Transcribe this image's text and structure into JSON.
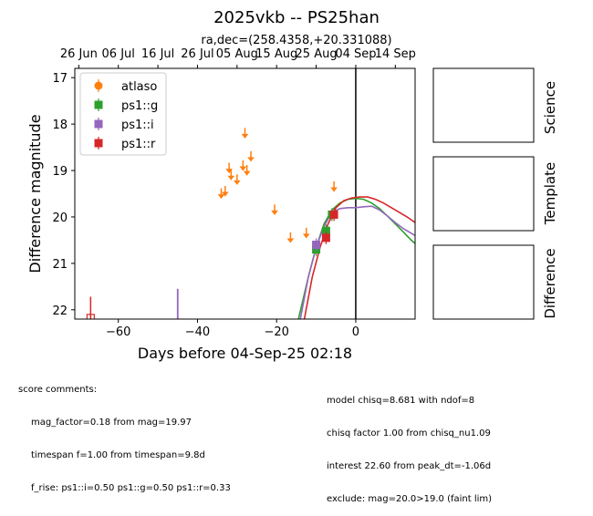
{
  "chart_data": {
    "type": "scatter",
    "title": "2025vkb -- PS25han",
    "subtitle": "ra,dec=(258.4358,+20.331088)",
    "xlabel": "Days before 04-Sep-25 02:18",
    "ylabel": "Difference magnitude",
    "xlim": [
      -71,
      15
    ],
    "ylim": [
      22.2,
      16.8
    ],
    "y_inverted": true,
    "x_ticks": [
      -60,
      -40,
      -20,
      0
    ],
    "y_ticks": [
      17,
      18,
      19,
      20,
      21,
      22
    ],
    "top_axis_ticks": [
      {
        "x": -70,
        "label": "26 Jun"
      },
      {
        "x": -60,
        "label": "06 Jul"
      },
      {
        "x": -50,
        "label": "16 Jul"
      },
      {
        "x": -40,
        "label": "26 Jul"
      },
      {
        "x": -30,
        "label": "05 Aug"
      },
      {
        "x": -20,
        "label": "15 Aug"
      },
      {
        "x": -10,
        "label": "25 Aug"
      },
      {
        "x": 0,
        "label": "04 Sep"
      },
      {
        "x": 10,
        "label": "14 Sep"
      }
    ],
    "vertical_line_x": 0,
    "legend_position": "upper-left",
    "series": [
      {
        "name": "atlaso",
        "color": "#ff7f0e",
        "marker": "circle",
        "kind": "upper_limit",
        "points": [
          [
            -34,
            19.5
          ],
          [
            -33,
            19.45
          ],
          [
            -32,
            18.95
          ],
          [
            -31.5,
            19.1
          ],
          [
            -30,
            19.2
          ],
          [
            -28.5,
            18.9
          ],
          [
            -28,
            18.2
          ],
          [
            -27.5,
            19.0
          ],
          [
            -26.5,
            18.7
          ],
          [
            -20.5,
            19.85
          ],
          [
            -16.5,
            20.45
          ],
          [
            -12.5,
            20.35
          ],
          [
            -5.5,
            19.35
          ]
        ]
      },
      {
        "name": "ps1::g",
        "color": "#2ca02c",
        "marker": "square",
        "kind": "detection",
        "points": [
          [
            -10,
            20.7
          ],
          [
            -7.5,
            20.3
          ],
          [
            -6,
            19.95
          ]
        ]
      },
      {
        "name": "ps1::i",
        "color": "#9467bd",
        "marker": "square",
        "kind": "detection",
        "points": [
          [
            -10,
            20.6
          ]
        ]
      },
      {
        "name": "ps1::r",
        "color": "#d62728",
        "marker": "square",
        "kind": "detection",
        "points": [
          [
            -7.5,
            20.45
          ],
          [
            -5.5,
            19.95
          ]
        ]
      }
    ],
    "early_limits": [
      {
        "series": "ps1::r",
        "x": -67,
        "y": 22.15,
        "color": "#d62728"
      },
      {
        "series": "ps1::i",
        "x": -45,
        "y": 21.55,
        "color": "#9467bd"
      }
    ],
    "model_curves": [
      {
        "series": "ps1::g",
        "color": "#2ca02c",
        "points": [
          [
            -14.5,
            22.2
          ],
          [
            -12,
            21.3
          ],
          [
            -10,
            20.65
          ],
          [
            -8,
            20.15
          ],
          [
            -6,
            19.85
          ],
          [
            -4,
            19.7
          ],
          [
            -2,
            19.62
          ],
          [
            0,
            19.6
          ],
          [
            2,
            19.62
          ],
          [
            4,
            19.7
          ],
          [
            6,
            19.82
          ],
          [
            8,
            19.98
          ],
          [
            10,
            20.15
          ],
          [
            12,
            20.32
          ],
          [
            14,
            20.5
          ],
          [
            15,
            20.57
          ]
        ]
      },
      {
        "series": "ps1::i",
        "color": "#9467bd",
        "points": [
          [
            -14,
            22.2
          ],
          [
            -12,
            21.3
          ],
          [
            -10,
            20.65
          ],
          [
            -8,
            20.2
          ],
          [
            -6,
            19.9
          ],
          [
            -4,
            19.82
          ],
          [
            -2,
            19.8
          ],
          [
            0,
            19.8
          ],
          [
            2,
            19.78
          ],
          [
            4,
            19.77
          ],
          [
            6,
            19.85
          ],
          [
            8,
            19.98
          ],
          [
            10,
            20.12
          ],
          [
            12,
            20.25
          ],
          [
            14,
            20.35
          ],
          [
            15,
            20.4
          ]
        ]
      },
      {
        "series": "ps1::r",
        "color": "#d62728",
        "points": [
          [
            -13,
            22.2
          ],
          [
            -11,
            21.3
          ],
          [
            -9,
            20.65
          ],
          [
            -7,
            20.15
          ],
          [
            -5,
            19.8
          ],
          [
            -3,
            19.65
          ],
          [
            -1,
            19.59
          ],
          [
            1,
            19.57
          ],
          [
            3,
            19.57
          ],
          [
            5,
            19.62
          ],
          [
            7,
            19.7
          ],
          [
            9,
            19.8
          ],
          [
            11,
            19.9
          ],
          [
            13,
            20.0
          ],
          [
            15,
            20.12
          ]
        ]
      }
    ]
  },
  "panels": {
    "science": "Science",
    "template": "Template",
    "difference": "Difference"
  },
  "comments": {
    "left_header": "score comments:",
    "left_lines": [
      "mag_factor=0.18 from mag=19.97",
      "timespan f=1.00 from timespan=9.8d",
      "f_rise: ps1::i=0.50 ps1::g=0.50 ps1::r=0.33"
    ],
    "right_lines": [
      "model chisq=8.681 with ndof=8",
      "chisq factor 1.00 from chisq_nu1.09",
      "interest 22.60 from peak_dt=-1.06d",
      "exclude: mag=20.0>19.0 (faint lim)"
    ]
  }
}
